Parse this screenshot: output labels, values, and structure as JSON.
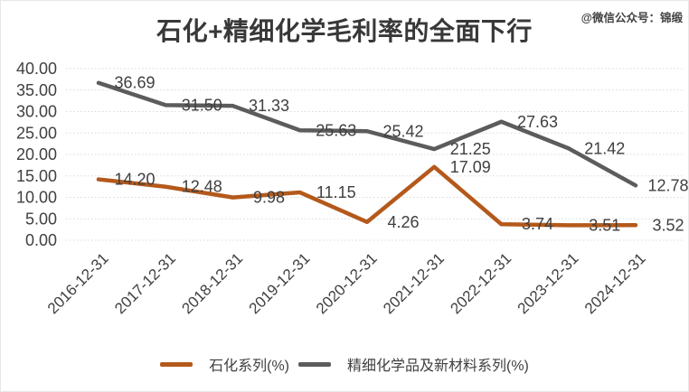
{
  "page": {
    "title": "石化+精细化学毛利率的全面下行",
    "watermark": "@微信公众号：锦缎"
  },
  "chart_data": {
    "type": "line",
    "title": "石化+精细化学毛利率的全面下行",
    "categories": [
      "2016-12-31",
      "2017-12-31",
      "2018-12-31",
      "2019-12-31",
      "2020-12-31",
      "2021-12-31",
      "2022-12-31",
      "2023-12-31",
      "2024-12-31"
    ],
    "series": [
      {
        "name": "石化系列(%)",
        "color": "#B4591B",
        "values": [
          14.2,
          12.48,
          9.98,
          11.15,
          4.26,
          17.09,
          3.74,
          3.51,
          3.52
        ]
      },
      {
        "name": "精细化学品及新材料系列(%)",
        "color": "#5C5C5C",
        "values": [
          36.69,
          31.5,
          31.33,
          25.63,
          25.42,
          21.25,
          27.63,
          21.42,
          12.78
        ]
      }
    ],
    "xlabel": "",
    "ylabel": "",
    "ylim": [
      0,
      40
    ],
    "ytick_step": 5,
    "yticks": [
      "0.00",
      "5.00",
      "10.00",
      "15.00",
      "20.00",
      "25.00",
      "30.00",
      "35.00",
      "40.00"
    ],
    "data_labels": true,
    "data_label_format": "2-decimals",
    "grid": "horizontal-dotted",
    "grid_color": "#D9D9D9",
    "axis_text_color": "#404040",
    "data_label_color": "#3F3F3F",
    "legend_position": "bottom"
  }
}
